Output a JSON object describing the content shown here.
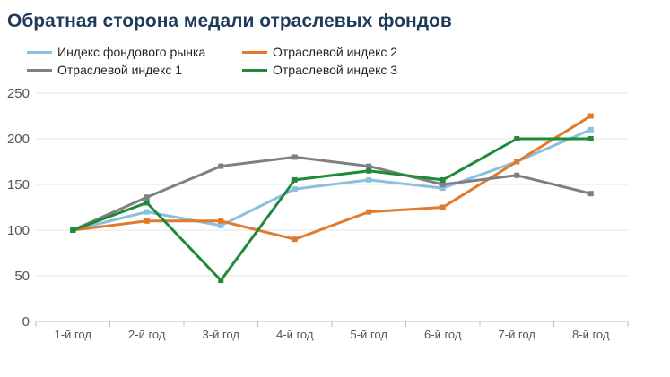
{
  "chart_data": {
    "type": "line",
    "title": "Обратная сторона медали отраслевых фондов",
    "categories": [
      "1-й год",
      "2-й год",
      "3-й год",
      "4-й год",
      "5-й год",
      "6-й год",
      "7-й год",
      "8-й год"
    ],
    "ylim": [
      0,
      250
    ],
    "yticks": [
      "0",
      "50",
      "100",
      "150",
      "200",
      "250"
    ],
    "grid": true,
    "legend_position": "top",
    "series": [
      {
        "name": "Индекс фондового рынка",
        "color": "#8bbfde",
        "values": [
          100,
          120,
          105,
          145,
          155,
          146,
          175,
          210
        ]
      },
      {
        "name": "Отраслевой индекс 2",
        "color": "#e07b2e",
        "values": [
          100,
          110,
          110,
          90,
          120,
          125,
          175,
          225
        ]
      },
      {
        "name": "Отраслевой индекс 1",
        "color": "#808080",
        "values": [
          100,
          136,
          170,
          180,
          170,
          150,
          160,
          140
        ]
      },
      {
        "name": "Отраслевой индекс 3",
        "color": "#1e8a3a",
        "values": [
          100,
          130,
          45,
          155,
          165,
          155,
          200,
          200
        ]
      }
    ]
  }
}
